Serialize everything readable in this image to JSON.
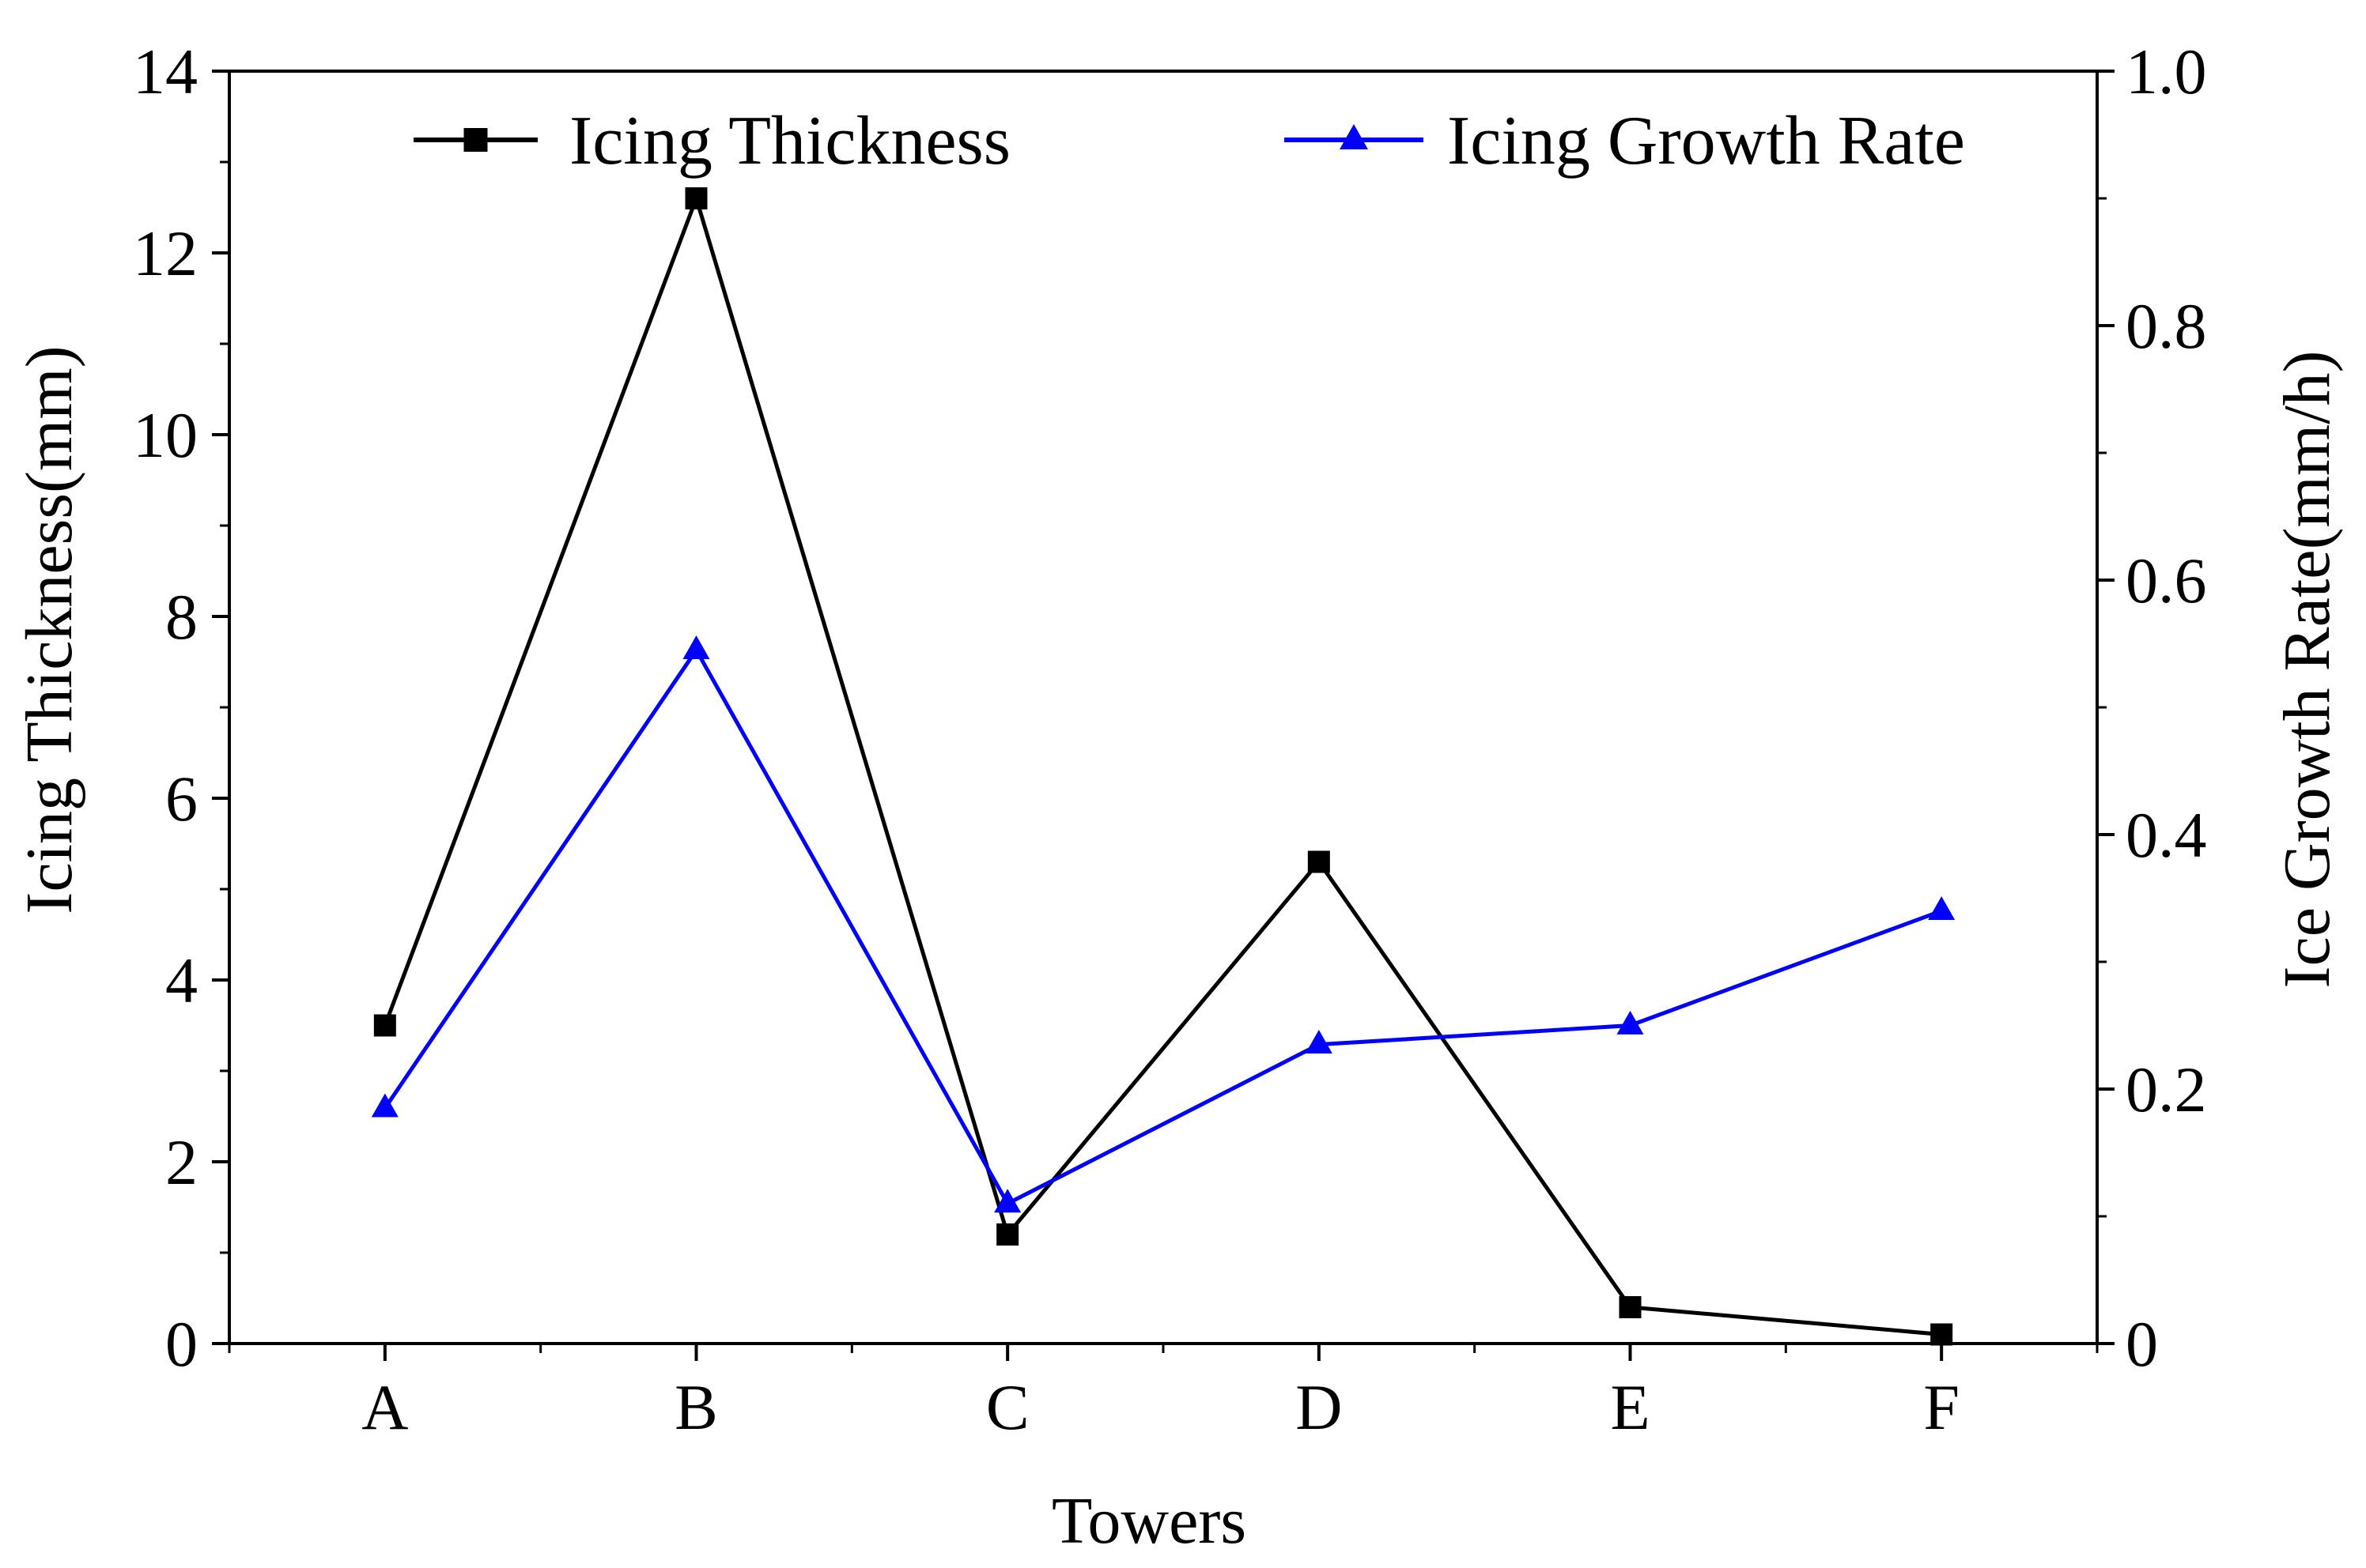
{
  "chart_data": {
    "type": "line",
    "title": "",
    "xlabel": "Towers",
    "ylabel_left": "Icing Thickness(mm)",
    "ylabel_right": "Ice Growth Rate(mm/h)",
    "categories": [
      "A",
      "B",
      "C",
      "D",
      "E",
      "F"
    ],
    "ylim_left": [
      0,
      14
    ],
    "ylim_right": [
      0,
      1.0
    ],
    "yticks_left": [
      "0",
      "2",
      "4",
      "6",
      "8",
      "10",
      "12",
      "14"
    ],
    "yticks_right": [
      "0",
      "0.2",
      "0.4",
      "0.6",
      "0.8",
      "1.0"
    ],
    "legend_position": "top",
    "grid": false,
    "series": [
      {
        "name": "Icing Thickness",
        "axis": "left",
        "marker": "square",
        "color": "#000000",
        "values": [
          3.5,
          12.6,
          1.2,
          5.3,
          0.4,
          0.1
        ]
      },
      {
        "name": "Icing Growth Rate",
        "axis": "right",
        "marker": "triangle",
        "color": "#0000ff",
        "values": [
          0.185,
          0.545,
          0.11,
          0.235,
          0.25,
          0.34
        ]
      }
    ]
  }
}
